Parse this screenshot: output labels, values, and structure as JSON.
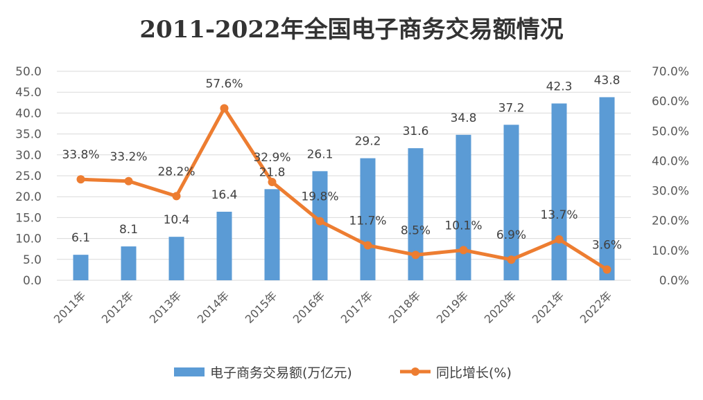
{
  "chart_data": {
    "type": "bar",
    "title": "2011-2022年全国电子商务交易额情况",
    "categories": [
      "2011年",
      "2012年",
      "2013年",
      "2014年",
      "2015年",
      "2016年",
      "2017年",
      "2018年",
      "2019年",
      "2020年",
      "2021年",
      "2022年"
    ],
    "series": [
      {
        "name": "电子商务交易额(万亿元)",
        "type": "bar",
        "axis": "left",
        "color": "#5b9bd5",
        "values": [
          6.1,
          8.1,
          10.4,
          16.4,
          21.8,
          26.1,
          29.2,
          31.6,
          34.8,
          37.2,
          42.3,
          43.8
        ],
        "labels": [
          "6.1",
          "8.1",
          "10.4",
          "16.4",
          "21.8",
          "26.1",
          "29.2",
          "31.6",
          "34.8",
          "37.2",
          "42.3",
          "43.8"
        ]
      },
      {
        "name": "同比增长(%)",
        "type": "line",
        "axis": "right",
        "color": "#ed7d31",
        "values": [
          33.8,
          33.2,
          28.2,
          57.6,
          32.9,
          19.8,
          11.7,
          8.5,
          10.1,
          6.9,
          13.7,
          3.6
        ],
        "labels": [
          "33.8%",
          "33.2%",
          "28.2%",
          "57.6%",
          "32.9%",
          "19.8%",
          "11.7%",
          "8.5%",
          "10.1%",
          "6.9%",
          "13.7%",
          "3.6%"
        ]
      }
    ],
    "y_left": {
      "ylim": [
        0,
        50
      ],
      "ticks": [
        "0.0",
        "5.0",
        "10.0",
        "15.0",
        "20.0",
        "25.0",
        "30.0",
        "35.0",
        "40.0",
        "45.0",
        "50.0"
      ]
    },
    "y_right": {
      "ylim": [
        0,
        70
      ],
      "ticks": [
        "0.0%",
        "10.0%",
        "20.0%",
        "30.0%",
        "40.0%",
        "50.0%",
        "60.0%",
        "70.0%"
      ]
    },
    "grid": true,
    "legend_position": "bottom"
  }
}
